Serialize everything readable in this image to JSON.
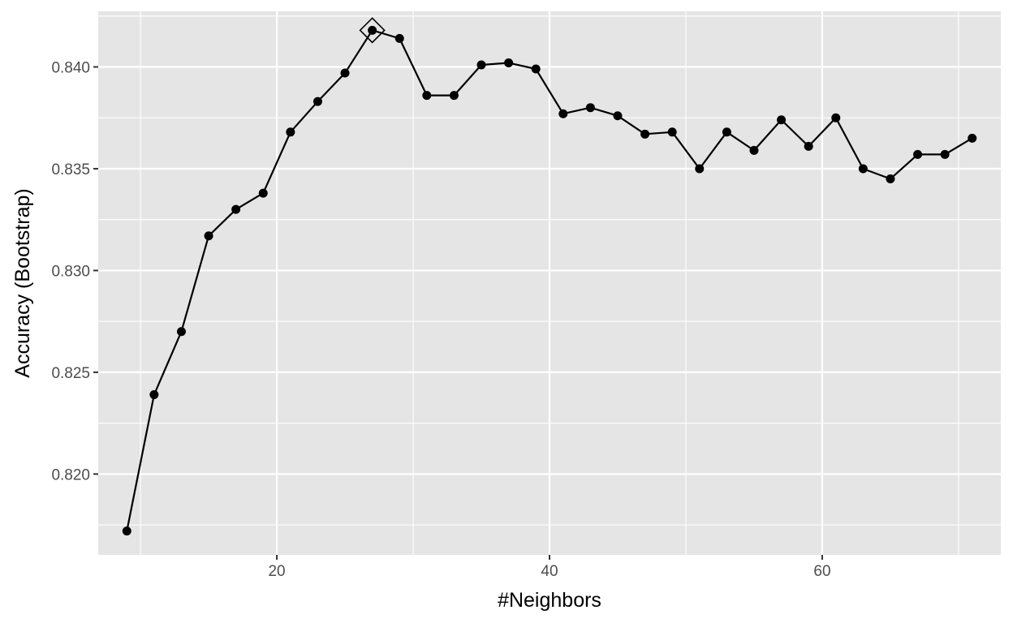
{
  "chart_data": {
    "type": "line",
    "xlabel": "#Neighbors",
    "ylabel": "Accuracy (Bootstrap)",
    "xlim": [
      6.9,
      73.1
    ],
    "ylim": [
      0.81603,
      0.84273
    ],
    "x_ticks": [
      20,
      40,
      60
    ],
    "x_tick_labels": [
      "20",
      "40",
      "60"
    ],
    "y_ticks": [
      0.82,
      0.825,
      0.83,
      0.835,
      0.84
    ],
    "y_tick_labels": [
      "0.820",
      "0.825",
      "0.830",
      "0.835",
      "0.840"
    ],
    "grid": true,
    "legend": "none",
    "series": [
      {
        "x": [
          9,
          11,
          13,
          15,
          17,
          19,
          21,
          23,
          25,
          27,
          29,
          31,
          33,
          35,
          37,
          39,
          41,
          43,
          45,
          47,
          49,
          51,
          53,
          55,
          57,
          59,
          61,
          63,
          65,
          67,
          69,
          71
        ],
        "y": [
          0.8172,
          0.8239,
          0.827,
          0.8317,
          0.833,
          0.8338,
          0.8368,
          0.8383,
          0.8397,
          0.8418,
          0.8414,
          0.8386,
          0.8386,
          0.8401,
          0.8402,
          0.8399,
          0.8377,
          0.838,
          0.8376,
          0.8367,
          0.8368,
          0.835,
          0.8368,
          0.8359,
          0.8374,
          0.8361,
          0.8375,
          0.835,
          0.8345,
          0.8357,
          0.8357,
          0.8365
        ]
      }
    ],
    "best": {
      "x": 27,
      "y": 0.8418
    },
    "colors": {
      "panel": "#e5e5e5",
      "grid": "#ffffff",
      "line": "#000000",
      "point": "#000000",
      "tick_text": "#4d4d4d",
      "tick_mark": "#333333"
    }
  }
}
